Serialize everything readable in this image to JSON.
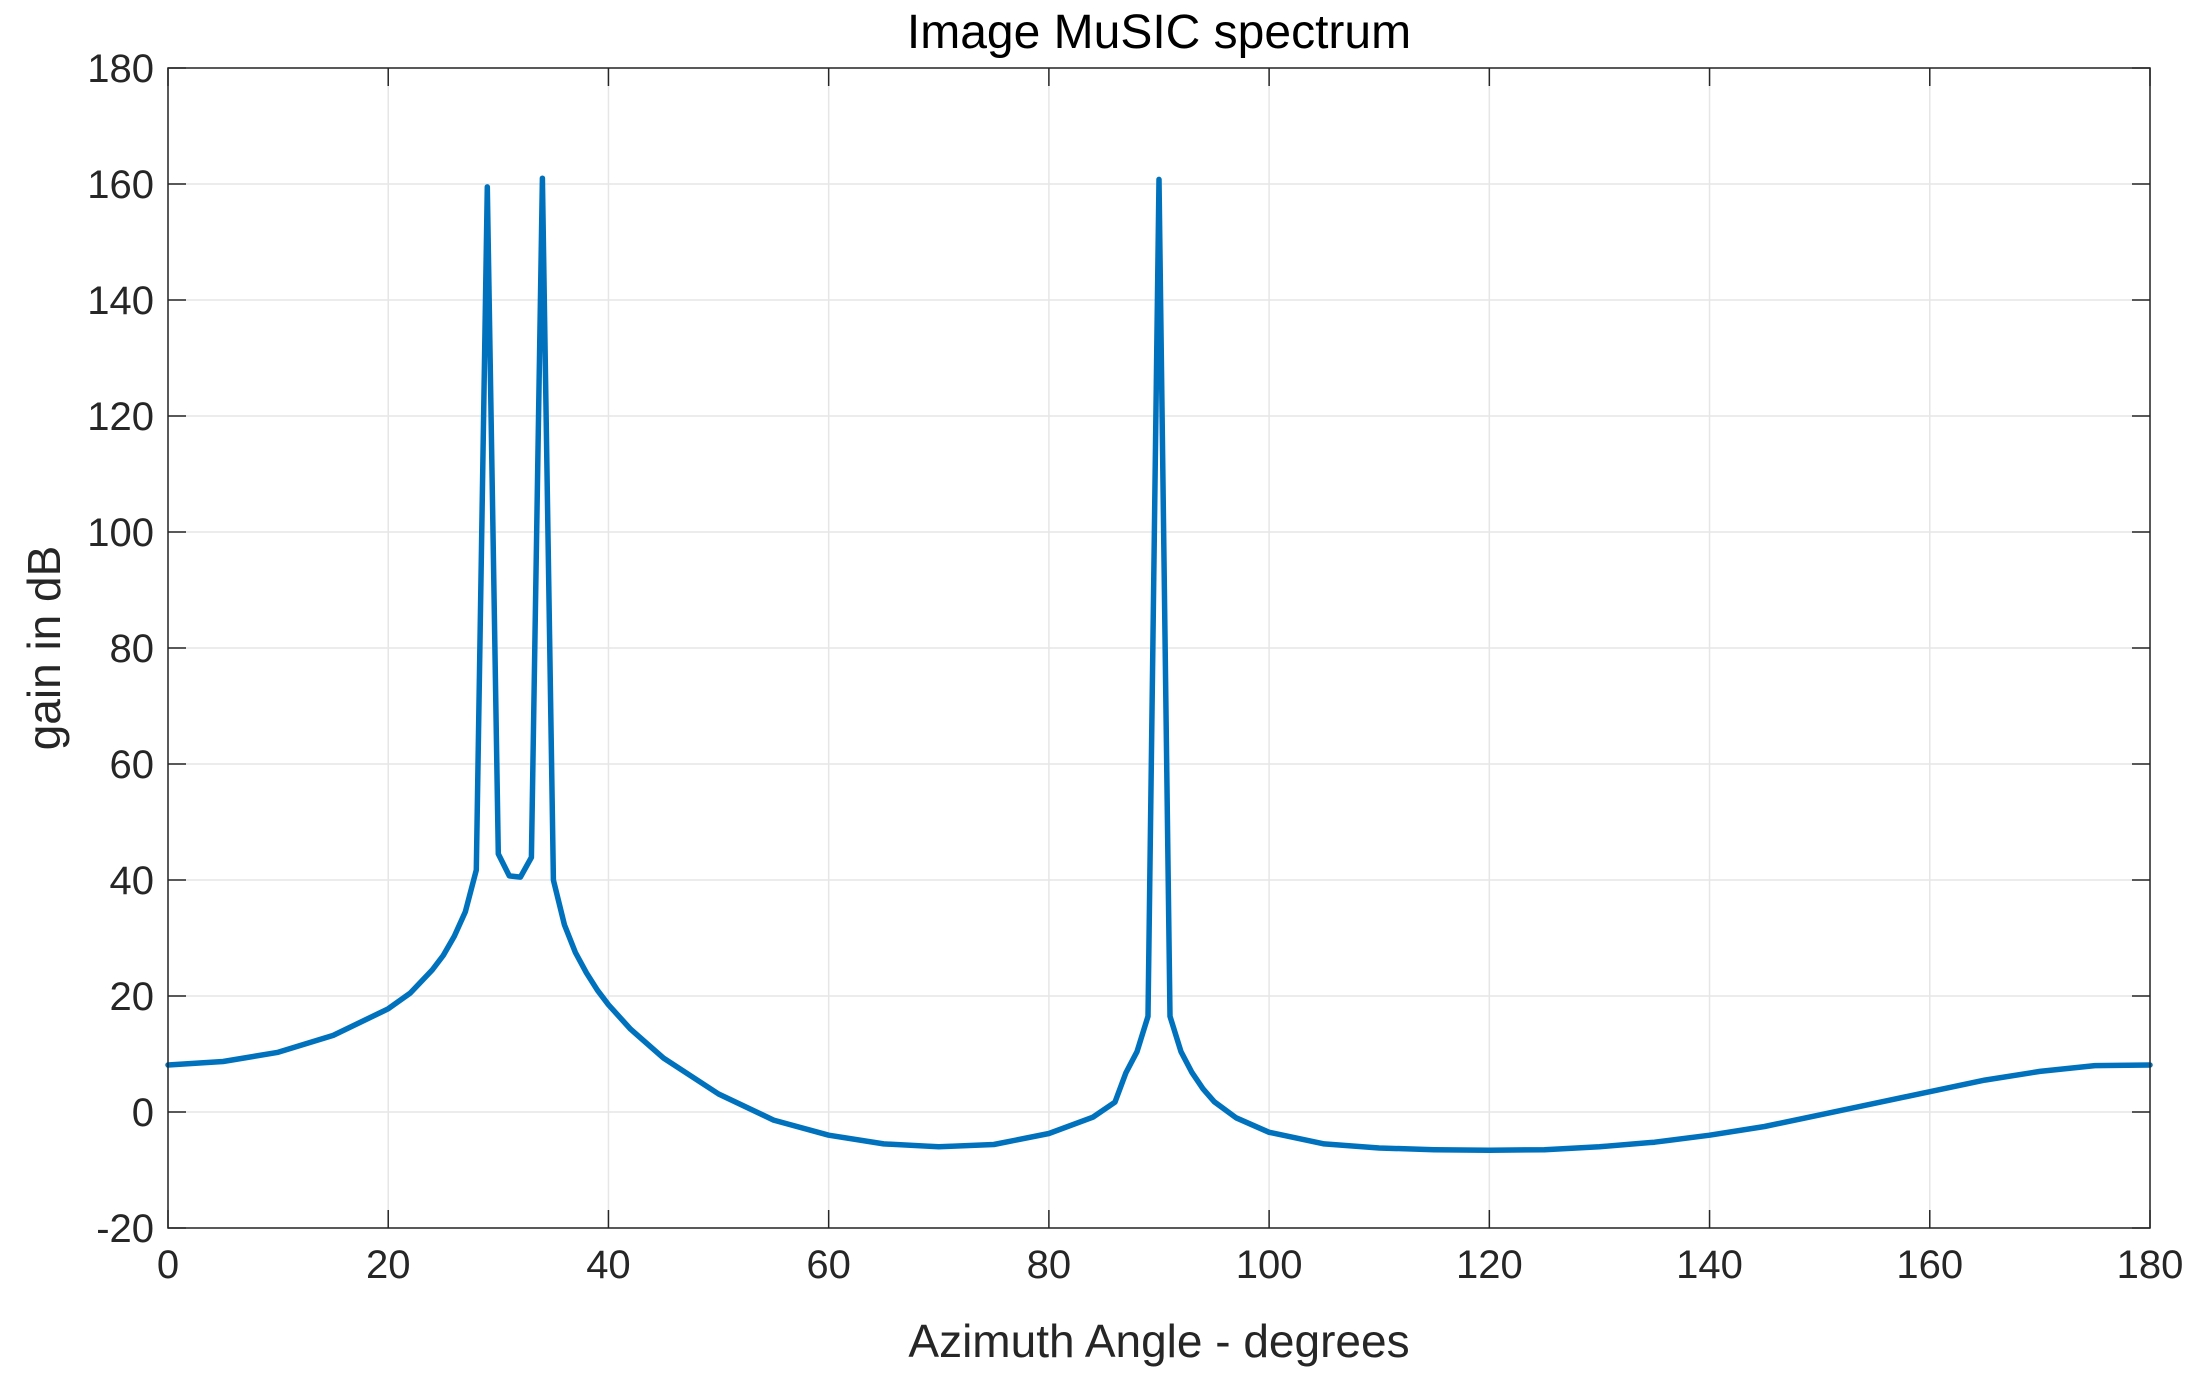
{
  "chart_data": {
    "type": "line",
    "title": "Image MuSIC spectrum",
    "xlabel": "Azimuth Angle - degrees",
    "ylabel": "gain in dB",
    "xlim": [
      0,
      180
    ],
    "ylim": [
      -20,
      180
    ],
    "xticks": [
      0,
      20,
      40,
      60,
      80,
      100,
      120,
      140,
      160,
      180
    ],
    "yticks": [
      -20,
      0,
      20,
      40,
      60,
      80,
      100,
      120,
      140,
      160,
      180
    ],
    "grid": true,
    "series_color": "#0072BD",
    "series": [
      {
        "x": [
          0,
          5,
          10,
          15,
          20,
          22,
          24,
          25,
          26,
          27,
          28,
          29,
          30,
          31,
          32,
          33,
          34,
          35,
          36,
          37,
          38,
          39,
          40,
          42,
          45,
          50,
          55,
          60,
          65,
          70,
          75,
          80,
          84,
          86,
          87,
          88,
          89,
          90,
          91,
          92,
          93,
          94,
          95,
          97,
          100,
          105,
          110,
          115,
          120,
          125,
          130,
          135,
          140,
          145,
          150,
          155,
          160,
          165,
          170,
          175,
          180
        ],
        "y": [
          8.1,
          8.7,
          10.3,
          13.2,
          17.8,
          20.5,
          24.5,
          27,
          30.3,
          34.5,
          41.7,
          159.5,
          44.5,
          40.7,
          40.5,
          43.9,
          161,
          40,
          32.3,
          27.5,
          24,
          21,
          18.5,
          14.3,
          9.3,
          3.1,
          -1.4,
          -4,
          -5.5,
          -6,
          -5.6,
          -3.7,
          -0.9,
          1.7,
          6.8,
          10.4,
          16.5,
          160.8,
          16.5,
          10.4,
          6.8,
          4,
          1.8,
          -1,
          -3.5,
          -5.5,
          -6.2,
          -6.5,
          -6.6,
          -6.5,
          -6,
          -5.2,
          -4,
          -2.5,
          -0.5,
          1.5,
          3.5,
          5.5,
          7,
          8,
          8.1
        ]
      }
    ]
  }
}
